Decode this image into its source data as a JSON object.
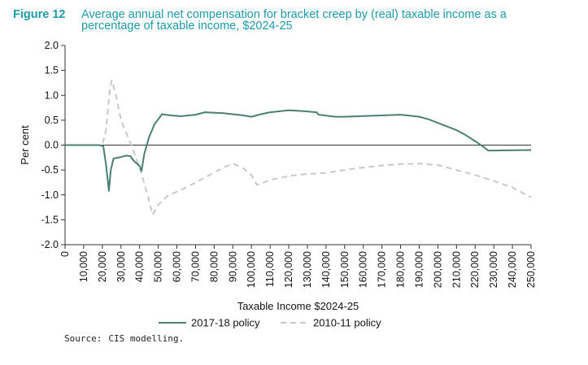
{
  "figure": {
    "label": "Figure 12",
    "title": "Average annual net compensation for bracket creep by (real) taxable income as a percentage of taxable income, $2024-25"
  },
  "source": {
    "label": "Source:",
    "text": "CIS modelling."
  },
  "colors": {
    "caption": "#1b9aa9",
    "series_2017": "#4a7f72",
    "series_2010": "#c8c8c8",
    "axis": "#333333"
  },
  "chart_data": {
    "type": "line",
    "title": "",
    "xlabel": "Taxable Income $2024-25",
    "ylabel": "Per cent",
    "xlim": [
      0,
      250000
    ],
    "ylim": [
      -2.0,
      2.0
    ],
    "xticks": [
      0,
      10000,
      20000,
      30000,
      40000,
      50000,
      60000,
      70000,
      80000,
      90000,
      100000,
      110000,
      120000,
      130000,
      140000,
      150000,
      160000,
      170000,
      180000,
      190000,
      200000,
      210000,
      220000,
      230000,
      240000,
      250000
    ],
    "xtick_labels": [
      "0",
      "10,000",
      "20,000",
      "30,000",
      "40,000",
      "50,000",
      "60,000",
      "70,000",
      "80,000",
      "90,000",
      "100,000",
      "110,000",
      "120,000",
      "130,000",
      "140,000",
      "150,000",
      "160,000",
      "170,000",
      "180,000",
      "190,000",
      "200,000",
      "210,000",
      "220,000",
      "230,000",
      "240,000",
      "250,000"
    ],
    "yticks": [
      -2.0,
      -1.5,
      -1.0,
      -0.5,
      0.0,
      0.5,
      1.0,
      1.5,
      2.0
    ],
    "ytick_labels": [
      "-2.0",
      "-1.5",
      "-1.0",
      "-0.5",
      "0.0",
      "0.5",
      "1.0",
      "1.5",
      "2.0"
    ],
    "grid": false,
    "reference_line": 0,
    "legend_position": "bottom",
    "series": [
      {
        "name": "2017-18 policy",
        "style": "solid",
        "points": [
          [
            0,
            0
          ],
          [
            18200,
            0
          ],
          [
            20500,
            -0.02
          ],
          [
            22000,
            -0.4
          ],
          [
            23500,
            -0.92
          ],
          [
            24500,
            -0.5
          ],
          [
            26000,
            -0.27
          ],
          [
            30000,
            -0.24
          ],
          [
            33000,
            -0.21
          ],
          [
            35000,
            -0.22
          ],
          [
            37000,
            -0.32
          ],
          [
            40000,
            -0.42
          ],
          [
            41000,
            -0.52
          ],
          [
            42500,
            -0.18
          ],
          [
            45000,
            0.15
          ],
          [
            48000,
            0.42
          ],
          [
            52000,
            0.62
          ],
          [
            56000,
            0.6
          ],
          [
            62000,
            0.58
          ],
          [
            70000,
            0.61
          ],
          [
            75000,
            0.66
          ],
          [
            85000,
            0.64
          ],
          [
            95000,
            0.6
          ],
          [
            100000,
            0.57
          ],
          [
            105000,
            0.62
          ],
          [
            110000,
            0.66
          ],
          [
            120000,
            0.7
          ],
          [
            128000,
            0.68
          ],
          [
            135000,
            0.66
          ],
          [
            136000,
            0.61
          ],
          [
            145000,
            0.57
          ],
          [
            150000,
            0.57
          ],
          [
            165000,
            0.59
          ],
          [
            180000,
            0.61
          ],
          [
            190000,
            0.57
          ],
          [
            195000,
            0.52
          ],
          [
            210000,
            0.3
          ],
          [
            215000,
            0.2
          ],
          [
            220000,
            0.08
          ],
          [
            225000,
            -0.05
          ],
          [
            227000,
            -0.11
          ],
          [
            250000,
            -0.1
          ]
        ]
      },
      {
        "name": "2010-11 policy",
        "style": "dashed",
        "points": [
          [
            0,
            0
          ],
          [
            20000,
            0
          ],
          [
            22000,
            0.3
          ],
          [
            24000,
            1.1
          ],
          [
            25000,
            1.3
          ],
          [
            27000,
            1.05
          ],
          [
            30000,
            0.5
          ],
          [
            35000,
            0.05
          ],
          [
            40000,
            -0.45
          ],
          [
            45000,
            -1.1
          ],
          [
            47000,
            -1.4
          ],
          [
            50000,
            -1.2
          ],
          [
            55000,
            -1.02
          ],
          [
            65000,
            -0.85
          ],
          [
            75000,
            -0.65
          ],
          [
            85000,
            -0.45
          ],
          [
            90000,
            -0.37
          ],
          [
            95000,
            -0.45
          ],
          [
            100000,
            -0.6
          ],
          [
            103000,
            -0.8
          ],
          [
            110000,
            -0.7
          ],
          [
            120000,
            -0.62
          ],
          [
            130000,
            -0.58
          ],
          [
            140000,
            -0.56
          ],
          [
            150000,
            -0.5
          ],
          [
            160000,
            -0.45
          ],
          [
            170000,
            -0.41
          ],
          [
            180000,
            -0.38
          ],
          [
            190000,
            -0.37
          ],
          [
            200000,
            -0.4
          ],
          [
            210000,
            -0.5
          ],
          [
            220000,
            -0.6
          ],
          [
            230000,
            -0.72
          ],
          [
            240000,
            -0.85
          ],
          [
            250000,
            -1.05
          ]
        ]
      }
    ]
  }
}
